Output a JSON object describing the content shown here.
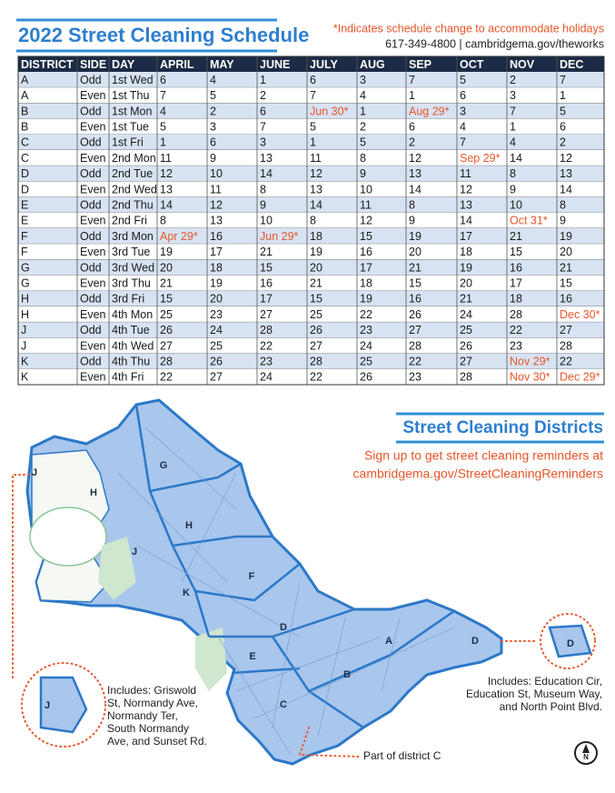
{
  "header": {
    "title": "2022 Street Cleaning Schedule",
    "note": "*Indicates schedule change to accommodate holidays",
    "contact": "617-349-4800 | cambridgema.gov/theworks"
  },
  "table": {
    "columns": [
      "DISTRICT",
      "SIDE",
      "DAY",
      "APRIL",
      "MAY",
      "JUNE",
      "JULY",
      "AUG",
      "SEP",
      "OCT",
      "NOV",
      "DEC"
    ],
    "rows": [
      [
        "A",
        "Odd",
        "1st Wed",
        6,
        4,
        1,
        6,
        3,
        7,
        5,
        2,
        7
      ],
      [
        "A",
        "Even",
        "1st Thu",
        7,
        5,
        2,
        7,
        4,
        1,
        6,
        3,
        1
      ],
      [
        "B",
        "Odd",
        "1st Mon",
        4,
        2,
        6,
        "Jun 30*",
        1,
        "Aug 29*",
        3,
        7,
        5
      ],
      [
        "B",
        "Even",
        "1st Tue",
        5,
        3,
        7,
        5,
        2,
        6,
        4,
        1,
        6
      ],
      [
        "C",
        "Odd",
        "1st Fri",
        1,
        6,
        3,
        1,
        5,
        2,
        7,
        4,
        2
      ],
      [
        "C",
        "Even",
        "2nd Mon",
        11,
        9,
        13,
        11,
        8,
        12,
        "Sep 29*",
        14,
        12
      ],
      [
        "D",
        "Odd",
        "2nd Tue",
        12,
        10,
        14,
        12,
        9,
        13,
        11,
        8,
        13
      ],
      [
        "D",
        "Even",
        "2nd Wed",
        13,
        11,
        8,
        13,
        10,
        14,
        12,
        9,
        14
      ],
      [
        "E",
        "Odd",
        "2nd Thu",
        14,
        12,
        9,
        14,
        11,
        8,
        13,
        10,
        8
      ],
      [
        "E",
        "Even",
        "2nd Fri",
        8,
        13,
        10,
        8,
        12,
        9,
        14,
        "Oct 31*",
        9
      ],
      [
        "F",
        "Odd",
        "3rd Mon",
        "Apr 29*",
        16,
        "Jun 29*",
        18,
        15,
        19,
        17,
        21,
        19
      ],
      [
        "F",
        "Even",
        "3rd Tue",
        19,
        17,
        21,
        19,
        16,
        20,
        18,
        15,
        20
      ],
      [
        "G",
        "Odd",
        "3rd Wed",
        20,
        18,
        15,
        20,
        17,
        21,
        19,
        16,
        21
      ],
      [
        "G",
        "Even",
        "3rd Thu",
        21,
        19,
        16,
        21,
        18,
        15,
        20,
        17,
        15
      ],
      [
        "H",
        "Odd",
        "3rd Fri",
        15,
        20,
        17,
        15,
        19,
        16,
        21,
        18,
        16
      ],
      [
        "H",
        "Even",
        "4th Mon",
        25,
        23,
        27,
        25,
        22,
        26,
        24,
        28,
        "Dec 30*"
      ],
      [
        "J",
        "Odd",
        "4th Tue",
        26,
        24,
        28,
        26,
        23,
        27,
        25,
        22,
        27
      ],
      [
        "J",
        "Even",
        "4th Wed",
        27,
        25,
        22,
        27,
        24,
        28,
        26,
        23,
        28
      ],
      [
        "K",
        "Odd",
        "4th Thu",
        28,
        26,
        23,
        28,
        25,
        22,
        27,
        "Nov 29*",
        22
      ],
      [
        "K",
        "Even",
        "4th Fri",
        22,
        27,
        24,
        22,
        26,
        23,
        28,
        "Nov 30*",
        "Dec 29*"
      ]
    ]
  },
  "districts": {
    "title": "Street Cleaning Districts",
    "signup": [
      "Sign up to get street cleaning reminders at",
      "cambridgema.gov/StreetCleaningReminders"
    ],
    "map_labels": [
      "J",
      "H",
      "G",
      "H",
      "J",
      "K",
      "F",
      "D",
      "E",
      "A",
      "B",
      "C",
      "D",
      "J",
      "D"
    ],
    "left_callout": [
      "Includes: Griswold",
      "St, Normandy Ave,",
      "Normandy Ter,",
      "South Normandy",
      "Ave, and Sunset Rd."
    ],
    "right_callout": [
      "Includes: Education Cir,",
      "Education St, Museum Way,",
      "and North Point Blvd."
    ],
    "part_c": "Part of district C",
    "north": "N"
  }
}
